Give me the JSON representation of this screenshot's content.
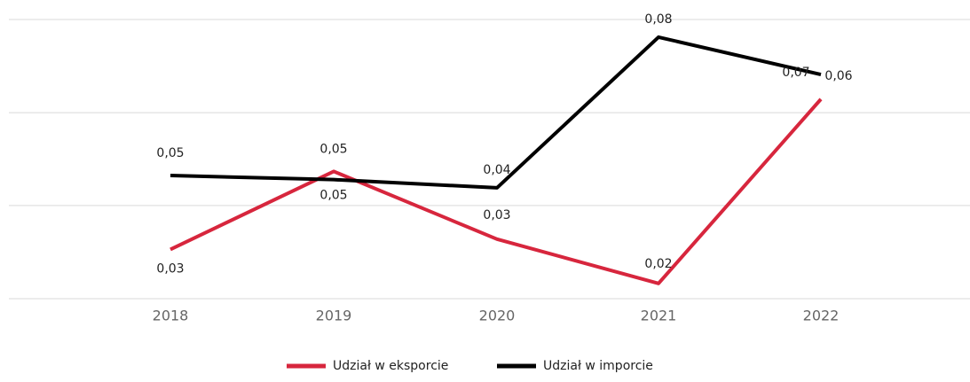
{
  "chart_data": {
    "type": "line",
    "categories": [
      "2018",
      "2019",
      "2020",
      "2021",
      "2022"
    ],
    "ylim": [
      0.016,
      0.084
    ],
    "yticks": [
      0.016,
      0.0387,
      0.0613,
      0.084
    ],
    "grid": true,
    "legend": "bottom",
    "series": [
      {
        "name": "Udział w eksporcie",
        "color": "#d7263d",
        "values": [
          0.028,
          0.047,
          0.0305,
          0.0197,
          0.0646
        ],
        "value_labels": [
          "0,03",
          "0,05",
          "0,03",
          "0,02",
          "0,06"
        ]
      },
      {
        "name": "Udział w imporcie",
        "color": "#000000",
        "values": [
          0.046,
          0.045,
          0.043,
          0.0797,
          0.0706
        ],
        "value_labels": [
          "0,05",
          "0,05",
          "0,04",
          "0,08",
          "0,07"
        ]
      }
    ]
  }
}
